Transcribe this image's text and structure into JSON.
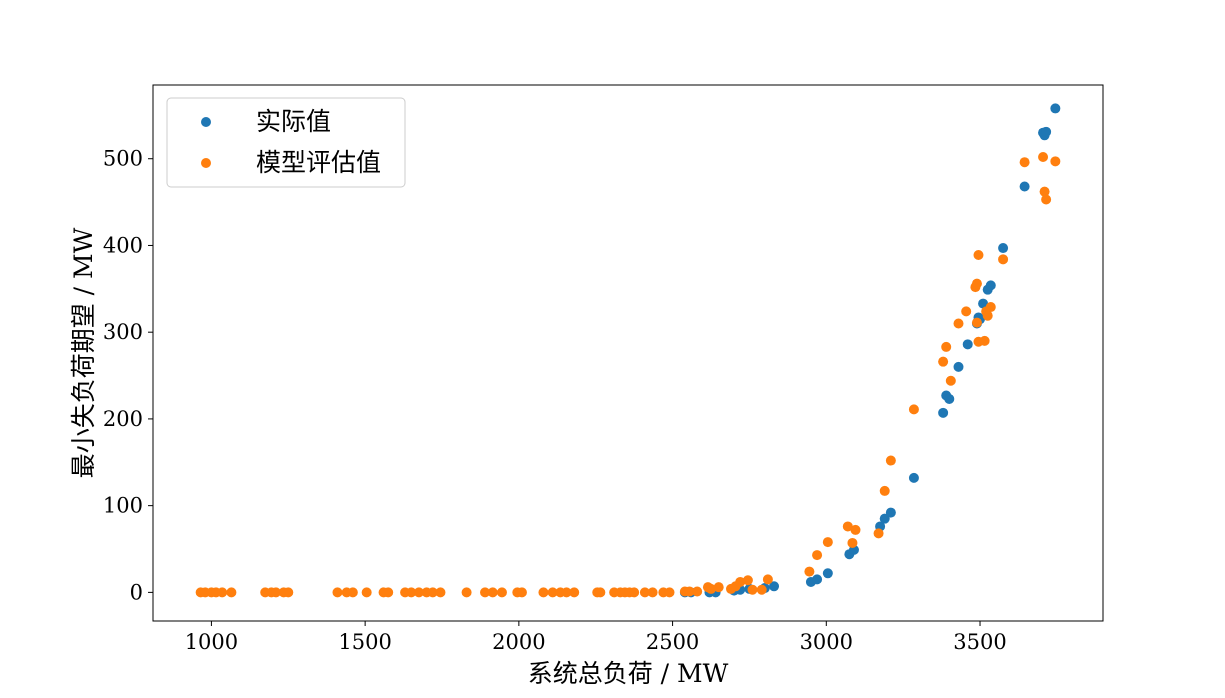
{
  "chart_data": {
    "type": "scatter",
    "xlabel": "系统总负荷 / MW",
    "ylabel": "最小失负荷期望 / MW",
    "xlim": [
      810,
      3900
    ],
    "ylim": [
      -33,
      585
    ],
    "xticks": [
      1000,
      1500,
      2000,
      2500,
      3000,
      3500
    ],
    "yticks": [
      0,
      100,
      200,
      300,
      400,
      500
    ],
    "grid": false,
    "legend": "top-left",
    "series": [
      {
        "name": "实际值",
        "color": "#1f77b4",
        "points": [
          [
            2540,
            0
          ],
          [
            2560,
            0
          ],
          [
            2620,
            0
          ],
          [
            2640,
            0
          ],
          [
            2700,
            2
          ],
          [
            2720,
            3
          ],
          [
            2750,
            4
          ],
          [
            2800,
            5
          ],
          [
            2830,
            7
          ],
          [
            2950,
            12
          ],
          [
            2970,
            15
          ],
          [
            3005,
            22
          ],
          [
            3075,
            44
          ],
          [
            3090,
            49
          ],
          [
            3175,
            76
          ],
          [
            3190,
            85
          ],
          [
            3210,
            92
          ],
          [
            3285,
            132
          ],
          [
            3380,
            207
          ],
          [
            3390,
            227
          ],
          [
            3400,
            223
          ],
          [
            3430,
            260
          ],
          [
            3460,
            286
          ],
          [
            3490,
            310
          ],
          [
            3495,
            317
          ],
          [
            3500,
            315
          ],
          [
            3510,
            333
          ],
          [
            3525,
            349
          ],
          [
            3535,
            354
          ],
          [
            3575,
            397
          ],
          [
            3645,
            468
          ],
          [
            3705,
            530
          ],
          [
            3710,
            527
          ],
          [
            3715,
            531
          ],
          [
            3745,
            558
          ]
        ]
      },
      {
        "name": "模型评估值",
        "color": "#ff7f0e",
        "points": [
          [
            965,
            0
          ],
          [
            980,
            0
          ],
          [
            1000,
            0
          ],
          [
            1015,
            0
          ],
          [
            1035,
            0
          ],
          [
            1065,
            0
          ],
          [
            1175,
            0
          ],
          [
            1195,
            0
          ],
          [
            1210,
            0
          ],
          [
            1235,
            0
          ],
          [
            1250,
            0
          ],
          [
            1410,
            0
          ],
          [
            1440,
            0
          ],
          [
            1460,
            0
          ],
          [
            1505,
            0
          ],
          [
            1560,
            0
          ],
          [
            1575,
            0
          ],
          [
            1630,
            0
          ],
          [
            1650,
            0
          ],
          [
            1675,
            0
          ],
          [
            1700,
            0
          ],
          [
            1720,
            0
          ],
          [
            1745,
            0
          ],
          [
            1830,
            0
          ],
          [
            1890,
            0
          ],
          [
            1915,
            0
          ],
          [
            1945,
            0
          ],
          [
            1995,
            0
          ],
          [
            2010,
            0
          ],
          [
            2080,
            0
          ],
          [
            2110,
            0
          ],
          [
            2135,
            0
          ],
          [
            2155,
            0
          ],
          [
            2180,
            0
          ],
          [
            2255,
            0
          ],
          [
            2265,
            0
          ],
          [
            2310,
            0
          ],
          [
            2330,
            0
          ],
          [
            2345,
            0
          ],
          [
            2360,
            0
          ],
          [
            2375,
            0
          ],
          [
            2410,
            0
          ],
          [
            2435,
            0
          ],
          [
            2470,
            0
          ],
          [
            2490,
            0
          ],
          [
            2540,
            1
          ],
          [
            2555,
            1
          ],
          [
            2580,
            1
          ],
          [
            2615,
            6
          ],
          [
            2625,
            4
          ],
          [
            2650,
            6
          ],
          [
            2690,
            4
          ],
          [
            2705,
            7
          ],
          [
            2720,
            12
          ],
          [
            2745,
            14
          ],
          [
            2760,
            3
          ],
          [
            2790,
            3
          ],
          [
            2810,
            15
          ],
          [
            2945,
            24
          ],
          [
            2970,
            43
          ],
          [
            3005,
            58
          ],
          [
            3070,
            76
          ],
          [
            3085,
            57
          ],
          [
            3095,
            72
          ],
          [
            3170,
            68
          ],
          [
            3190,
            117
          ],
          [
            3210,
            152
          ],
          [
            3285,
            211
          ],
          [
            3380,
            266
          ],
          [
            3390,
            283
          ],
          [
            3405,
            244
          ],
          [
            3430,
            310
          ],
          [
            3455,
            324
          ],
          [
            3485,
            352
          ],
          [
            3490,
            356
          ],
          [
            3495,
            389
          ],
          [
            3490,
            311
          ],
          [
            3495,
            289
          ],
          [
            3515,
            290
          ],
          [
            3520,
            324
          ],
          [
            3525,
            319
          ],
          [
            3535,
            329
          ],
          [
            3575,
            384
          ],
          [
            3645,
            496
          ],
          [
            3705,
            502
          ],
          [
            3710,
            462
          ],
          [
            3715,
            453
          ],
          [
            3745,
            497
          ]
        ]
      }
    ]
  }
}
